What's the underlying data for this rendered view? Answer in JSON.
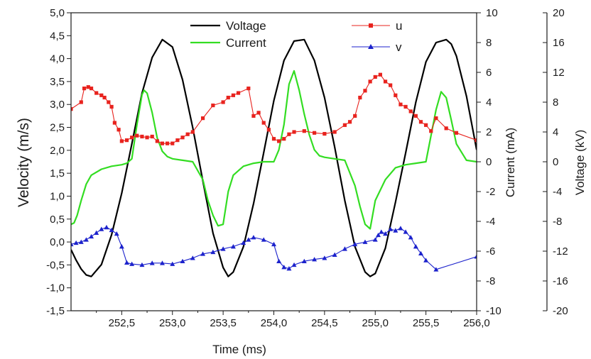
{
  "chart_data": {
    "type": "line",
    "title": "",
    "xlabel": "Time (ms)",
    "ylabel_left": "Velocity (m/s)",
    "ylabel_right_current": "Current (mA)",
    "ylabel_right_voltage": "Voltage (kV)",
    "xlim": [
      252.0,
      256.0
    ],
    "ylim_velocity": [
      -1.5,
      5.0
    ],
    "ylim_current": [
      -10,
      10
    ],
    "ylim_voltage": [
      -20,
      20
    ],
    "x_ticks": [
      "252,5",
      "253,0",
      "253,5",
      "254,0",
      "254,5",
      "255,0",
      "255,5",
      "256,0"
    ],
    "velocity_ticks": [
      "-1,5",
      "-1,0",
      "-0,5",
      "0,0",
      "0,5",
      "1,0",
      "1,5",
      "2,0",
      "2,5",
      "3,0",
      "3,5",
      "4,0",
      "4,5",
      "5,0"
    ],
    "current_ticks": [
      "-10",
      "-8",
      "-6",
      "-4",
      "-2",
      "0",
      "2",
      "4",
      "6",
      "8",
      "10"
    ],
    "voltage_ticks": [
      "-20",
      "-16",
      "-12",
      "-8",
      "-4",
      "0",
      "4",
      "8",
      "12",
      "16",
      "20"
    ],
    "legend": [
      {
        "name": "Voltage",
        "color": "#000000",
        "marker": "line"
      },
      {
        "name": "Current",
        "color": "#33dd22",
        "marker": "line"
      },
      {
        "name": "u",
        "color": "#e8231e",
        "marker": "square"
      },
      {
        "name": "v",
        "color": "#1c22cc",
        "marker": "triangle"
      }
    ],
    "series": [
      {
        "name": "Voltage",
        "axis": "voltage",
        "color": "#000000",
        "x": [
          252.0,
          252.05,
          252.1,
          252.15,
          252.2,
          252.3,
          252.4,
          252.5,
          252.6,
          252.7,
          252.8,
          252.9,
          253.0,
          253.1,
          253.2,
          253.3,
          253.4,
          253.5,
          253.55,
          253.6,
          253.7,
          253.8,
          253.9,
          254.0,
          254.1,
          254.2,
          254.3,
          254.4,
          254.5,
          254.6,
          254.7,
          254.8,
          254.9,
          254.95,
          255.0,
          255.1,
          255.2,
          255.3,
          255.4,
          255.5,
          255.6,
          255.7,
          255.75,
          255.8,
          255.9,
          256.0
        ],
        "y": [
          -11.8,
          -13.2,
          -14.4,
          -15.2,
          -15.4,
          -13.8,
          -9.8,
          -4.2,
          2.4,
          9.2,
          14.0,
          16.4,
          15.4,
          11.0,
          4.6,
          -2.6,
          -9.6,
          -14.2,
          -15.4,
          -14.8,
          -11.4,
          -5.6,
          1.2,
          8.2,
          13.6,
          16.2,
          16.4,
          13.6,
          8.6,
          2.0,
          -5.2,
          -11.4,
          -14.8,
          -15.4,
          -15.0,
          -11.6,
          -5.4,
          1.2,
          8.0,
          13.4,
          16.0,
          16.4,
          15.8,
          14.2,
          8.8,
          1.6
        ]
      },
      {
        "name": "Current",
        "axis": "current",
        "color": "#33dd22",
        "x": [
          252.0,
          252.03,
          252.06,
          252.1,
          252.15,
          252.2,
          252.3,
          252.4,
          252.5,
          252.55,
          252.6,
          252.65,
          252.7,
          252.72,
          252.75,
          252.8,
          252.85,
          252.9,
          252.95,
          253.0,
          253.1,
          253.2,
          253.3,
          253.35,
          253.4,
          253.45,
          253.5,
          253.55,
          253.6,
          253.7,
          253.8,
          253.9,
          254.0,
          254.05,
          254.1,
          254.15,
          254.2,
          254.25,
          254.3,
          254.35,
          254.4,
          254.45,
          254.5,
          254.6,
          254.7,
          254.8,
          254.85,
          254.9,
          254.95,
          255.0,
          255.1,
          255.2,
          255.3,
          255.4,
          255.5,
          255.6,
          255.65,
          255.7,
          255.75,
          255.8,
          255.9,
          256.0
        ],
        "y": [
          -4.2,
          -4.1,
          -3.6,
          -2.6,
          -1.5,
          -0.9,
          -0.5,
          -0.3,
          -0.2,
          -0.1,
          0.2,
          2.5,
          4.5,
          4.8,
          4.6,
          3.3,
          1.6,
          0.7,
          0.35,
          0.2,
          0.1,
          0.0,
          -1.2,
          -2.6,
          -3.6,
          -4.3,
          -4.2,
          -2.0,
          -0.9,
          -0.3,
          -0.1,
          0.0,
          0.0,
          0.8,
          2.5,
          5.2,
          6.1,
          4.8,
          3.2,
          1.8,
          0.8,
          0.4,
          0.3,
          0.2,
          0.1,
          -1.6,
          -3.0,
          -4.2,
          -4.5,
          -2.6,
          -1.2,
          -0.4,
          -0.2,
          -0.1,
          0.0,
          3.5,
          4.7,
          4.3,
          2.8,
          1.2,
          0.1,
          0.0
        ]
      },
      {
        "name": "u",
        "axis": "velocity",
        "color": "#e8231e",
        "x": [
          252.0,
          252.1,
          252.13,
          252.17,
          252.2,
          252.25,
          252.3,
          252.33,
          252.37,
          252.4,
          252.43,
          252.47,
          252.5,
          252.55,
          252.6,
          252.65,
          252.7,
          252.75,
          252.8,
          252.85,
          252.9,
          252.95,
          253.0,
          253.05,
          253.1,
          253.15,
          253.2,
          253.3,
          253.4,
          253.5,
          253.55,
          253.6,
          253.65,
          253.75,
          253.8,
          253.85,
          253.9,
          253.95,
          254.0,
          254.05,
          254.1,
          254.15,
          254.2,
          254.3,
          254.4,
          254.5,
          254.6,
          254.7,
          254.75,
          254.8,
          254.85,
          254.9,
          254.95,
          255.0,
          255.05,
          255.1,
          255.15,
          255.2,
          255.25,
          255.3,
          255.35,
          255.4,
          255.45,
          255.5,
          255.55,
          255.6,
          255.7,
          255.8,
          256.0
        ],
        "y": [
          2.9,
          3.05,
          3.35,
          3.38,
          3.35,
          3.25,
          3.2,
          3.15,
          3.05,
          2.95,
          2.6,
          2.45,
          2.2,
          2.22,
          2.28,
          2.32,
          2.3,
          2.28,
          2.3,
          2.2,
          2.15,
          2.15,
          2.15,
          2.22,
          2.28,
          2.35,
          2.4,
          2.7,
          2.98,
          3.05,
          3.15,
          3.2,
          3.25,
          3.35,
          2.75,
          2.82,
          2.6,
          2.45,
          2.25,
          2.2,
          2.25,
          2.35,
          2.4,
          2.42,
          2.38,
          2.36,
          2.4,
          2.55,
          2.62,
          2.75,
          3.15,
          3.3,
          3.5,
          3.6,
          3.65,
          3.5,
          3.42,
          3.2,
          3.0,
          2.95,
          2.85,
          2.75,
          2.62,
          2.55,
          2.42,
          2.7,
          2.48,
          2.38,
          2.22
        ]
      },
      {
        "name": "v",
        "axis": "velocity",
        "color": "#1c22cc",
        "x": [
          252.0,
          252.05,
          252.1,
          252.15,
          252.2,
          252.25,
          252.3,
          252.35,
          252.4,
          252.45,
          252.5,
          252.55,
          252.6,
          252.7,
          252.8,
          252.9,
          253.0,
          253.1,
          253.2,
          253.3,
          253.4,
          253.5,
          253.6,
          253.7,
          253.75,
          253.8,
          253.9,
          254.0,
          254.05,
          254.1,
          254.15,
          254.2,
          254.3,
          254.4,
          254.5,
          254.6,
          254.7,
          254.8,
          254.9,
          255.0,
          255.03,
          255.06,
          255.1,
          255.15,
          255.2,
          255.25,
          255.3,
          255.35,
          255.4,
          255.45,
          255.5,
          255.6,
          256.0
        ],
        "y": [
          -0.05,
          -0.02,
          0.0,
          0.05,
          0.12,
          0.2,
          0.28,
          0.32,
          0.26,
          0.18,
          -0.1,
          -0.45,
          -0.48,
          -0.5,
          -0.46,
          -0.46,
          -0.48,
          -0.42,
          -0.35,
          -0.26,
          -0.22,
          -0.15,
          -0.1,
          -0.02,
          0.05,
          0.1,
          0.05,
          -0.05,
          -0.42,
          -0.55,
          -0.58,
          -0.5,
          -0.42,
          -0.38,
          -0.35,
          -0.28,
          -0.15,
          -0.05,
          0.0,
          0.05,
          0.15,
          0.22,
          0.18,
          0.28,
          0.25,
          0.3,
          0.22,
          0.1,
          -0.1,
          -0.25,
          -0.4,
          -0.6,
          -0.32
        ]
      }
    ]
  }
}
